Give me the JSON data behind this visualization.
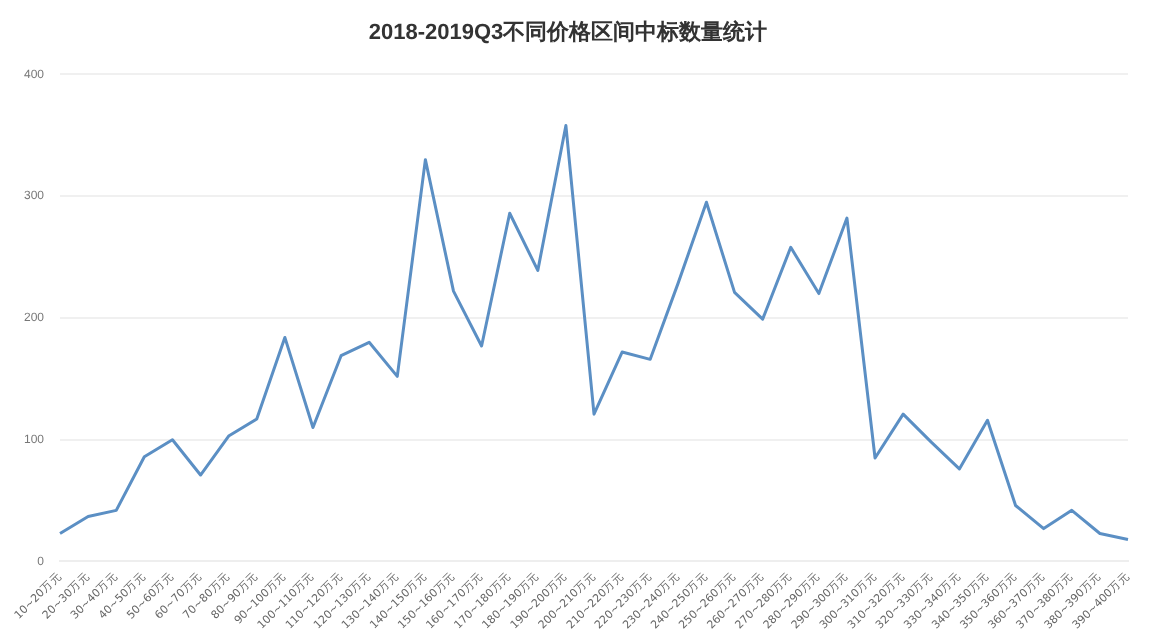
{
  "chart_data": {
    "type": "line",
    "title": "2018-2019Q3不同价格区间中标数量统计",
    "categories": [
      "10~20万元",
      "20~30万元",
      "30~40万元",
      "40~50万元",
      "50~60万元",
      "60~70万元",
      "70~80万元",
      "80~90万元",
      "90~100万元",
      "100~110万元",
      "110~120万元",
      "120~130万元",
      "130~140万元",
      "140~150万元",
      "150~160万元",
      "160~170万元",
      "170~180万元",
      "180~190万元",
      "190~200万元",
      "200~210万元",
      "210~220万元",
      "220~230万元",
      "230~240万元",
      "240~250万元",
      "250~260万元",
      "260~270万元",
      "270~280万元",
      "280~290万元",
      "290~300万元",
      "300~310万元",
      "310~320万元",
      "320~330万元",
      "330~340万元",
      "340~350万元",
      "350~360万元",
      "360~370万元",
      "370~380万元",
      "380~390万元",
      "390~400万元"
    ],
    "series": [
      {
        "color": "#5b8fc4",
        "values": [
          23,
          37,
          42,
          86,
          100,
          71,
          103,
          117,
          184,
          110,
          169,
          180,
          152,
          330,
          222,
          177,
          286,
          239,
          358,
          121,
          172,
          166,
          229,
          295,
          221,
          199,
          258,
          220,
          282,
          85,
          121,
          98,
          76,
          116,
          46,
          27,
          42,
          23,
          18
        ]
      }
    ],
    "ylim": [
      0,
      400
    ],
    "yticks": [
      0,
      100,
      200,
      300,
      400
    ],
    "grid": "y",
    "marker": "none",
    "line_style": "solid"
  }
}
